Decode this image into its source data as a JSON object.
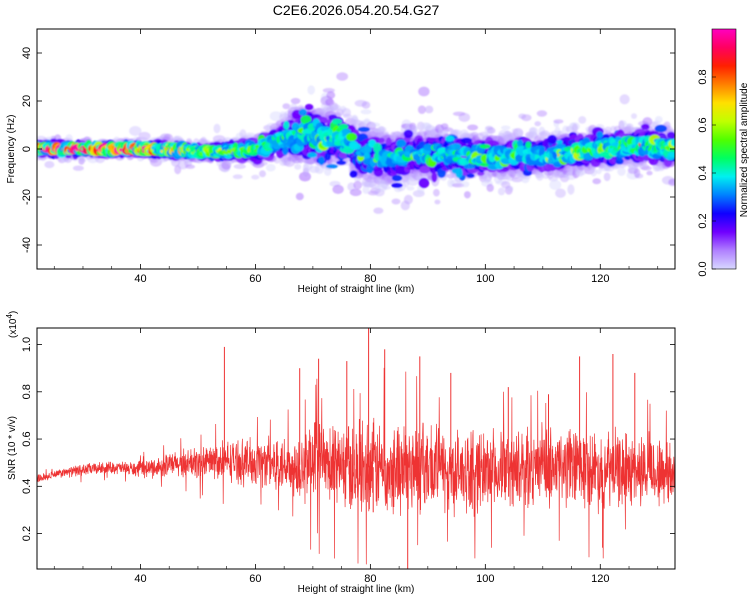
{
  "title": "C2E6.2026.054.20.54.G27",
  "chart_data": [
    {
      "type": "heatmap",
      "xlabel": "Height of straight line (km)",
      "ylabel": "Frequency (Hz)",
      "xlim": [
        22,
        133
      ],
      "ylim": [
        -50,
        50
      ],
      "xticks": [
        40,
        60,
        80,
        100,
        120
      ],
      "yticks": [
        -40,
        -20,
        0,
        20,
        40
      ],
      "colorbar": {
        "label": "Normalized spectral amplitude",
        "range": [
          0,
          1
        ],
        "ticks": [
          "0.0",
          "0.2",
          "0.4",
          "0.6",
          "0.8"
        ],
        "tick_values": [
          0,
          0.2,
          0.4,
          0.6,
          0.8
        ],
        "colormap": [
          "#d8d8ff",
          "#b080ff",
          "#7000ff",
          "#1000ff",
          "#0080ff",
          "#00f0f0",
          "#00ff60",
          "#50ff00",
          "#c0ff00",
          "#ffe000",
          "#ff8000",
          "#ff2000",
          "#ff0060",
          "#ff00c0"
        ]
      },
      "band_profile": {
        "height_km": [
          22,
          30,
          40,
          45,
          50,
          55,
          60,
          63,
          66,
          68,
          70,
          72,
          74,
          76,
          78,
          80,
          84,
          88,
          92,
          96,
          100,
          104,
          108,
          112,
          116,
          120,
          124,
          128,
          133
        ],
        "center_hz": [
          0,
          0,
          0,
          0,
          -1,
          -1,
          0,
          2,
          5,
          6,
          6,
          5,
          5,
          4,
          -2,
          -3,
          -4,
          -2,
          -2,
          -3,
          -3,
          -3,
          -2,
          -3,
          -1,
          0,
          1,
          1,
          0
        ],
        "halfwidth_hz": [
          2.5,
          2.5,
          2.5,
          3,
          3,
          3.5,
          4.5,
          6,
          9,
          12,
          12,
          11,
          11,
          10,
          11,
          11,
          10,
          10,
          9,
          8,
          8,
          8,
          8,
          8,
          7.5,
          7,
          7,
          7,
          7
        ],
        "peak_amplitude": [
          0.95,
          0.95,
          0.95,
          0.8,
          0.55,
          0.55,
          0.5,
          0.4,
          0.4,
          0.35,
          0.35,
          0.35,
          0.35,
          0.35,
          0.3,
          0.3,
          0.3,
          0.3,
          0.35,
          0.35,
          0.35,
          0.35,
          0.35,
          0.35,
          0.4,
          0.45,
          0.45,
          0.45,
          0.45
        ]
      }
    },
    {
      "type": "line",
      "xlabel": "Height of straight line (km)",
      "ylabel": "SNR (10 * v/v)",
      "yscale_label": "(x10",
      "yscale_exp": "4",
      "yscale_close": ")",
      "xlim": [
        22,
        133
      ],
      "ylim": [
        0.05,
        1.07
      ],
      "xticks": [
        40,
        60,
        80,
        100,
        120
      ],
      "yticks": [
        0.2,
        0.4,
        0.6,
        0.8,
        1.0
      ],
      "ytick_labels": [
        "0.2",
        "0.4",
        "0.6",
        "0.8",
        "1.0"
      ],
      "color": "#ee3333",
      "envelope": {
        "height_km": [
          22,
          25,
          30,
          35,
          40,
          45,
          50,
          55,
          60,
          63,
          66,
          68,
          70,
          75,
          80,
          85,
          90,
          95,
          100,
          105,
          110,
          115,
          120,
          125,
          130,
          133
        ],
        "mean": [
          0.43,
          0.45,
          0.47,
          0.48,
          0.47,
          0.49,
          0.5,
          0.51,
          0.5,
          0.5,
          0.5,
          0.49,
          0.49,
          0.48,
          0.48,
          0.49,
          0.48,
          0.46,
          0.47,
          0.47,
          0.49,
          0.48,
          0.47,
          0.47,
          0.46,
          0.44
        ],
        "spread": [
          0.02,
          0.02,
          0.03,
          0.03,
          0.04,
          0.06,
          0.08,
          0.1,
          0.12,
          0.13,
          0.16,
          0.2,
          0.22,
          0.22,
          0.23,
          0.23,
          0.23,
          0.2,
          0.2,
          0.18,
          0.2,
          0.2,
          0.2,
          0.18,
          0.18,
          0.16
        ]
      },
      "spikes": [
        [
          54.6,
          0.99
        ],
        [
          67.7,
          0.9
        ],
        [
          71,
          0.94
        ],
        [
          75.9,
          0.93
        ],
        [
          79.7,
          1.07
        ],
        [
          82.5,
          0.98
        ],
        [
          80.5,
          0.29
        ],
        [
          86.5,
          0.04
        ],
        [
          88.6,
          0.95
        ],
        [
          94,
          0.88
        ],
        [
          104,
          0.82
        ],
        [
          111,
          0.79
        ],
        [
          116.4,
          0.95
        ],
        [
          122.2,
          0.96
        ],
        [
          120.4,
          0.14
        ],
        [
          126,
          0.88
        ]
      ]
    }
  ]
}
